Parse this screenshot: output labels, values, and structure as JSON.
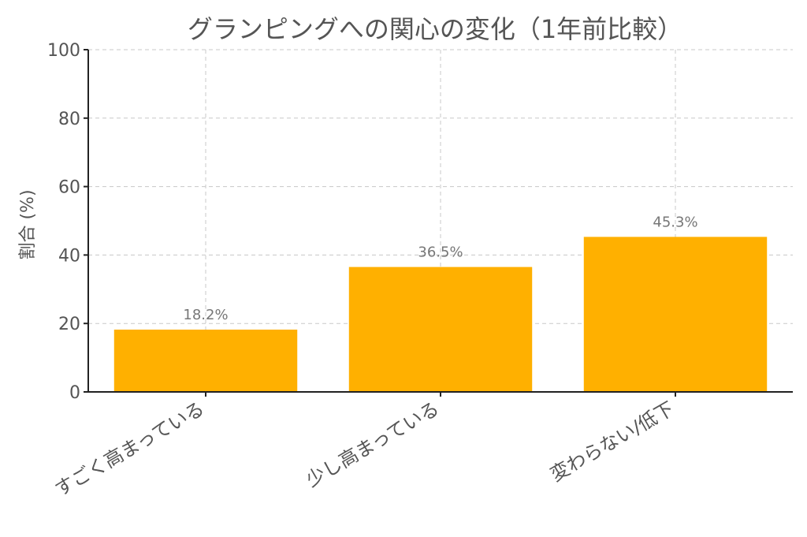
{
  "chart_data": {
    "type": "bar",
    "title": "グランピングへの関心の変化（1年前比較）",
    "ylabel": "割合 (%)",
    "categories": [
      "すごく高まっている",
      "少し高まっている",
      "変わらない/低下"
    ],
    "values": [
      18.2,
      36.5,
      45.3
    ],
    "value_labels": [
      "18.2%",
      "36.5%",
      "45.3%"
    ],
    "ylim": [
      0,
      100
    ],
    "yticks": [
      0,
      20,
      40,
      60,
      80,
      100
    ],
    "grid": true,
    "bar_color": "#ffb000"
  }
}
